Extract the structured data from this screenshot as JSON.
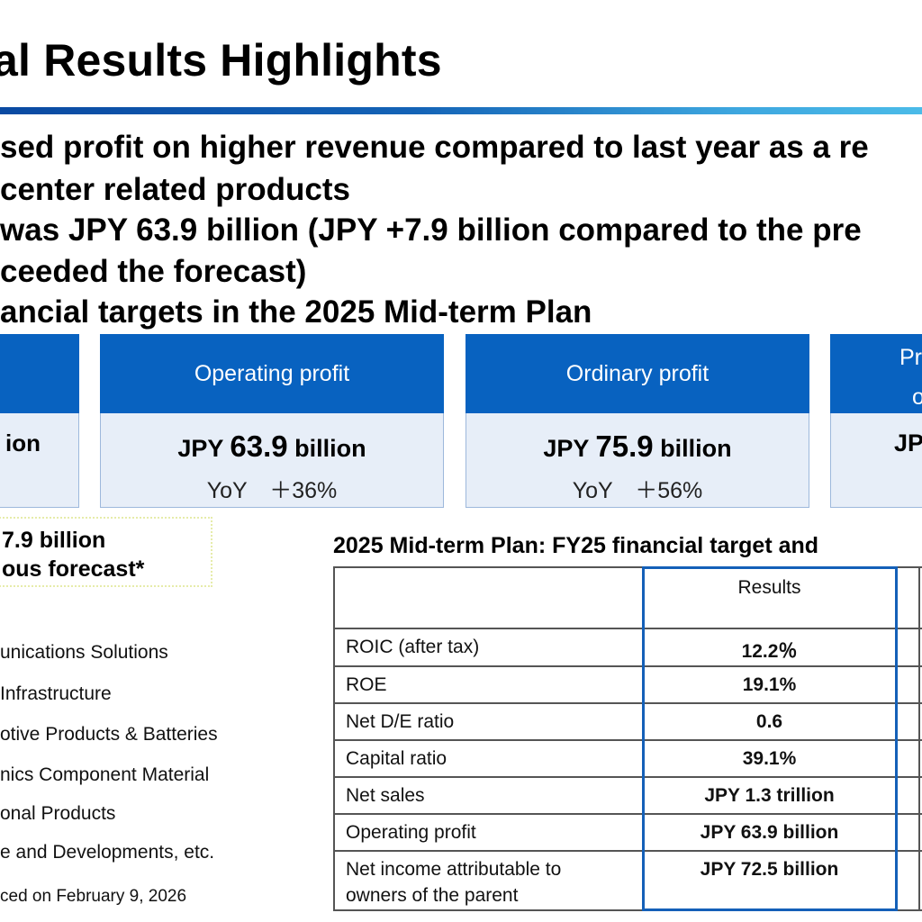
{
  "page": {
    "title": "al Results Highlights"
  },
  "bullets": [
    "sed profit on higher revenue compared to last year as a re",
    " center related products",
    " was JPY 63.9 billion (JPY +7.9 billion compared to the pre",
    "ceeded the forecast)",
    "ancial targets in the 2025 Mid-term Plan"
  ],
  "cards": [
    {
      "head": "",
      "value_prefix": "",
      "value_big": "",
      "value_suffix": "ion",
      "yoy": ""
    },
    {
      "head": "Operating profit",
      "value_prefix": "JPY ",
      "value_big": "63.9",
      "value_suffix": " billion",
      "yoy": "YoY　＋36%"
    },
    {
      "head": "Ordinary profit",
      "value_prefix": "JPY ",
      "value_big": "75.9",
      "value_suffix": " billion",
      "yoy": "YoY　＋56%"
    },
    {
      "head_line1": "Pr",
      "head_line2": "o",
      "value_prefix": "JP",
      "value_big": "",
      "value_suffix": "",
      "yoy": ""
    }
  ],
  "note": {
    "line1": "7.9 billion",
    "line2": "ous forecast*"
  },
  "segments": [
    "unications Solutions",
    " Infrastructure",
    "otive Products & Batteries",
    "nics Component Material",
    "onal Products",
    "e and Developments, etc."
  ],
  "footnote": "ced on February 9, 2026",
  "table": {
    "title": "2025 Mid-term Plan: FY25 financial target and",
    "results_header": "Results",
    "rows": [
      {
        "label": "ROIC (after tax)",
        "result": "12.2％"
      },
      {
        "label": "ROE",
        "result": "19.1%"
      },
      {
        "label": "Net D/E ratio",
        "result": "0.6"
      },
      {
        "label": "Capital ratio",
        "result": "39.1%"
      },
      {
        "label": "Net sales",
        "result": "JPY 1.3 trillion"
      },
      {
        "label": "Operating profit",
        "result": "JPY 63.9 billion"
      },
      {
        "label": "Net income attributable to",
        "label2": "owners of the parent",
        "result": "JPY 72.5 billion"
      }
    ]
  },
  "colors": {
    "card_header": "#0862c0",
    "card_body": "#e7eef8",
    "results_frame": "#1460b8"
  }
}
